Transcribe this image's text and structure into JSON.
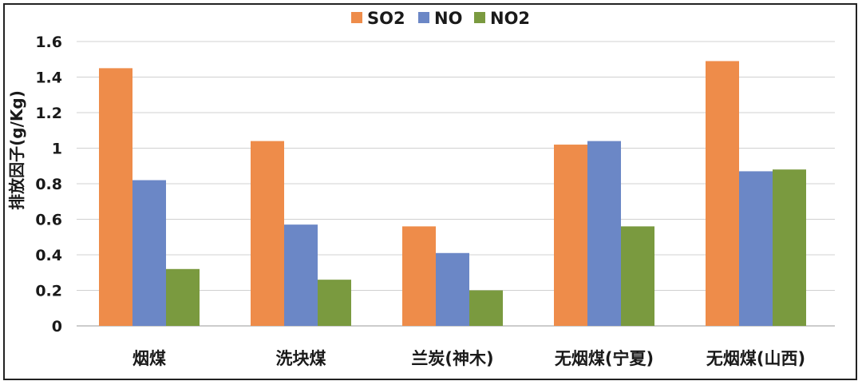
{
  "chart_data": {
    "type": "bar",
    "title": "",
    "xlabel": "",
    "ylabel": "排放因子(g/Kg)",
    "ylim": [
      0,
      1.6
    ],
    "yticks": [
      "0",
      "0.2",
      "0.4",
      "0.6",
      "0.8",
      "1",
      "1.2",
      "1.4",
      "1.6"
    ],
    "grid": true,
    "legend_position": "top-center",
    "categories": [
      "烟煤",
      "洗块煤",
      "兰炭(神木)",
      "无烟煤(宁夏)",
      "无烟煤(山西)"
    ],
    "series": [
      {
        "name": "SO2",
        "color": "#EE8C4A",
        "values": [
          1.45,
          1.04,
          0.56,
          1.02,
          1.49
        ]
      },
      {
        "name": "NO",
        "color": "#6B87C6",
        "values": [
          0.82,
          0.57,
          0.41,
          1.04,
          0.87
        ]
      },
      {
        "name": "NO2",
        "color": "#7A9A3F",
        "values": [
          0.32,
          0.26,
          0.2,
          0.56,
          0.88
        ]
      }
    ]
  }
}
